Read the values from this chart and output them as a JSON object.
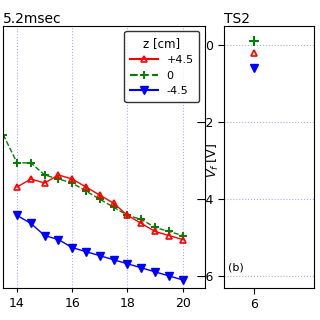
{
  "title_left": "5.2msec",
  "title_right": "TS2",
  "xlim_left": [
    13.5,
    20.8
  ],
  "ylim_left": [
    -6.3,
    0.2
  ],
  "xlim_right": [
    5.5,
    7.0
  ],
  "ylim_right": [
    -6.3,
    0.5
  ],
  "yticks_left": [],
  "yticks_right": [
    0,
    -2,
    -4,
    -6
  ],
  "xticks_left": [
    14,
    16,
    18,
    20
  ],
  "xticks_right": [
    6
  ],
  "legend_title": "z [cm]",
  "annotation_right": "(b)",
  "left_series": {
    "x_red": [
      14.0,
      14.5,
      15.0,
      15.5,
      16.0,
      16.5,
      17.0,
      17.5,
      18.0,
      18.5,
      19.0,
      19.5,
      20.0
    ],
    "y_red": [
      -3.8,
      -3.6,
      -3.7,
      -3.5,
      -3.6,
      -3.8,
      -4.0,
      -4.2,
      -4.5,
      -4.7,
      -4.9,
      -5.0,
      -5.1
    ],
    "x_green": [
      13.5,
      14.0,
      14.5,
      15.0,
      15.5,
      16.0,
      16.5,
      17.0,
      17.5,
      18.0,
      18.5,
      19.0,
      19.5,
      20.0
    ],
    "y_green": [
      -2.5,
      -3.2,
      -3.2,
      -3.5,
      -3.6,
      -3.7,
      -3.9,
      -4.1,
      -4.3,
      -4.5,
      -4.6,
      -4.8,
      -4.9,
      -5.0
    ],
    "x_blue": [
      14.0,
      14.5,
      15.0,
      15.5,
      16.0,
      16.5,
      17.0,
      17.5,
      18.0,
      18.5,
      19.0,
      19.5,
      20.0
    ],
    "y_blue": [
      -4.5,
      -4.7,
      -5.0,
      -5.1,
      -5.3,
      -5.4,
      -5.5,
      -5.6,
      -5.7,
      -5.8,
      -5.9,
      -6.0,
      -6.1
    ]
  },
  "right_series": {
    "x_red": [
      6.0
    ],
    "y_red": [
      -0.2
    ],
    "x_green": [
      6.0
    ],
    "y_green": [
      0.1
    ],
    "x_blue": [
      6.0
    ],
    "y_blue": [
      -0.6
    ]
  },
  "gridcolor": "#aaaaee",
  "gridstyle": ":",
  "bg_color": "white"
}
